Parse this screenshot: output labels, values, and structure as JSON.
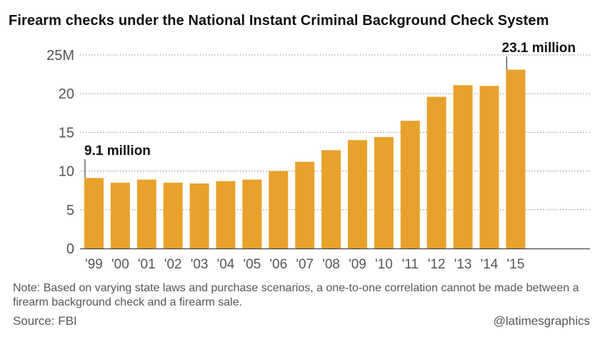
{
  "title": "Firearm checks under the National Instant Criminal Background Check System",
  "note": "Note: Based on varying state laws and purchase scenarios, a one-to-one correlation cannot be made between a firearm background check and a firearm sale.",
  "source": "Source: FBI",
  "credit": "@latimesgraphics",
  "colors": {
    "bar": "#E8A22B",
    "grid": "#888888",
    "text": "#555555",
    "label": "#111111"
  },
  "chart_data": {
    "type": "bar",
    "title": "Firearm checks under the National Instant Criminal Background Check System",
    "categories": [
      "'99",
      "'00",
      "'01",
      "'02",
      "'03",
      "'04",
      "'05",
      "'06",
      "'07",
      "'08",
      "'09",
      "'10",
      "'11",
      "'12",
      "'13",
      "'14",
      "'15"
    ],
    "values": [
      9.1,
      8.5,
      8.9,
      8.5,
      8.4,
      8.7,
      8.9,
      10.0,
      11.2,
      12.7,
      14.0,
      14.4,
      16.5,
      19.6,
      21.1,
      21.0,
      23.1
    ],
    "yticks": [
      0,
      5,
      10,
      15,
      20,
      25
    ],
    "ytick_labels": [
      "0",
      "5",
      "10",
      "15",
      "20",
      "25M"
    ],
    "ylim": [
      0,
      25
    ],
    "grid": true,
    "xlabel": "",
    "ylabel": "",
    "annotations": [
      {
        "index": 0,
        "text": "9.1 million"
      },
      {
        "index": 16,
        "text": "23.1 million"
      }
    ]
  }
}
